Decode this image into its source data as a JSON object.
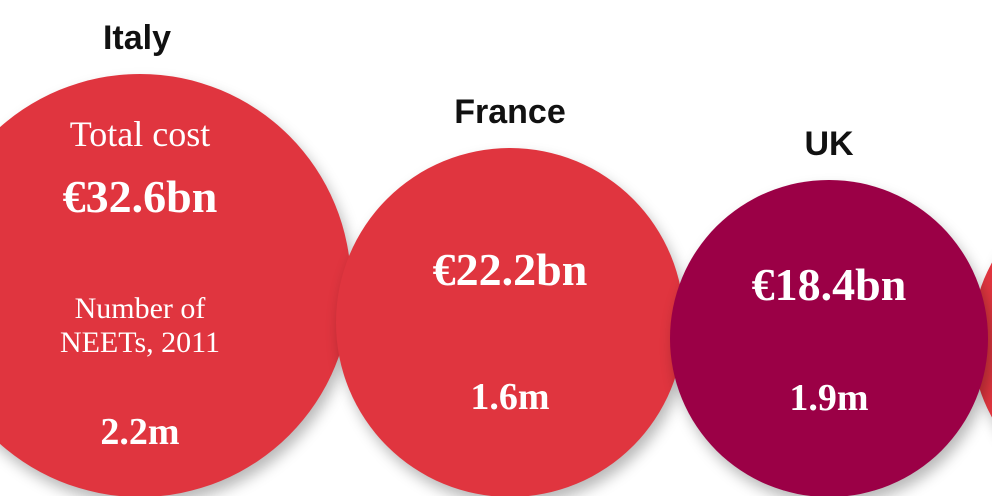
{
  "chart_data": {
    "type": "bubble",
    "categories": [
      "Italy",
      "France",
      "UK"
    ],
    "cost_label": "Total cost",
    "neets_label": "Number of NEETs, 2011",
    "values": [
      32.6,
      22.2,
      18.4
    ],
    "value_labels": [
      "€32.6bn",
      "€22.2bn",
      "€18.4bn"
    ],
    "neets": [
      2.2,
      1.6,
      1.9
    ],
    "neets_labels": [
      "2.2m",
      "1.6m",
      "1.9m"
    ],
    "colors": [
      "#e0353f",
      "#e0353f",
      "#9b0046"
    ]
  }
}
